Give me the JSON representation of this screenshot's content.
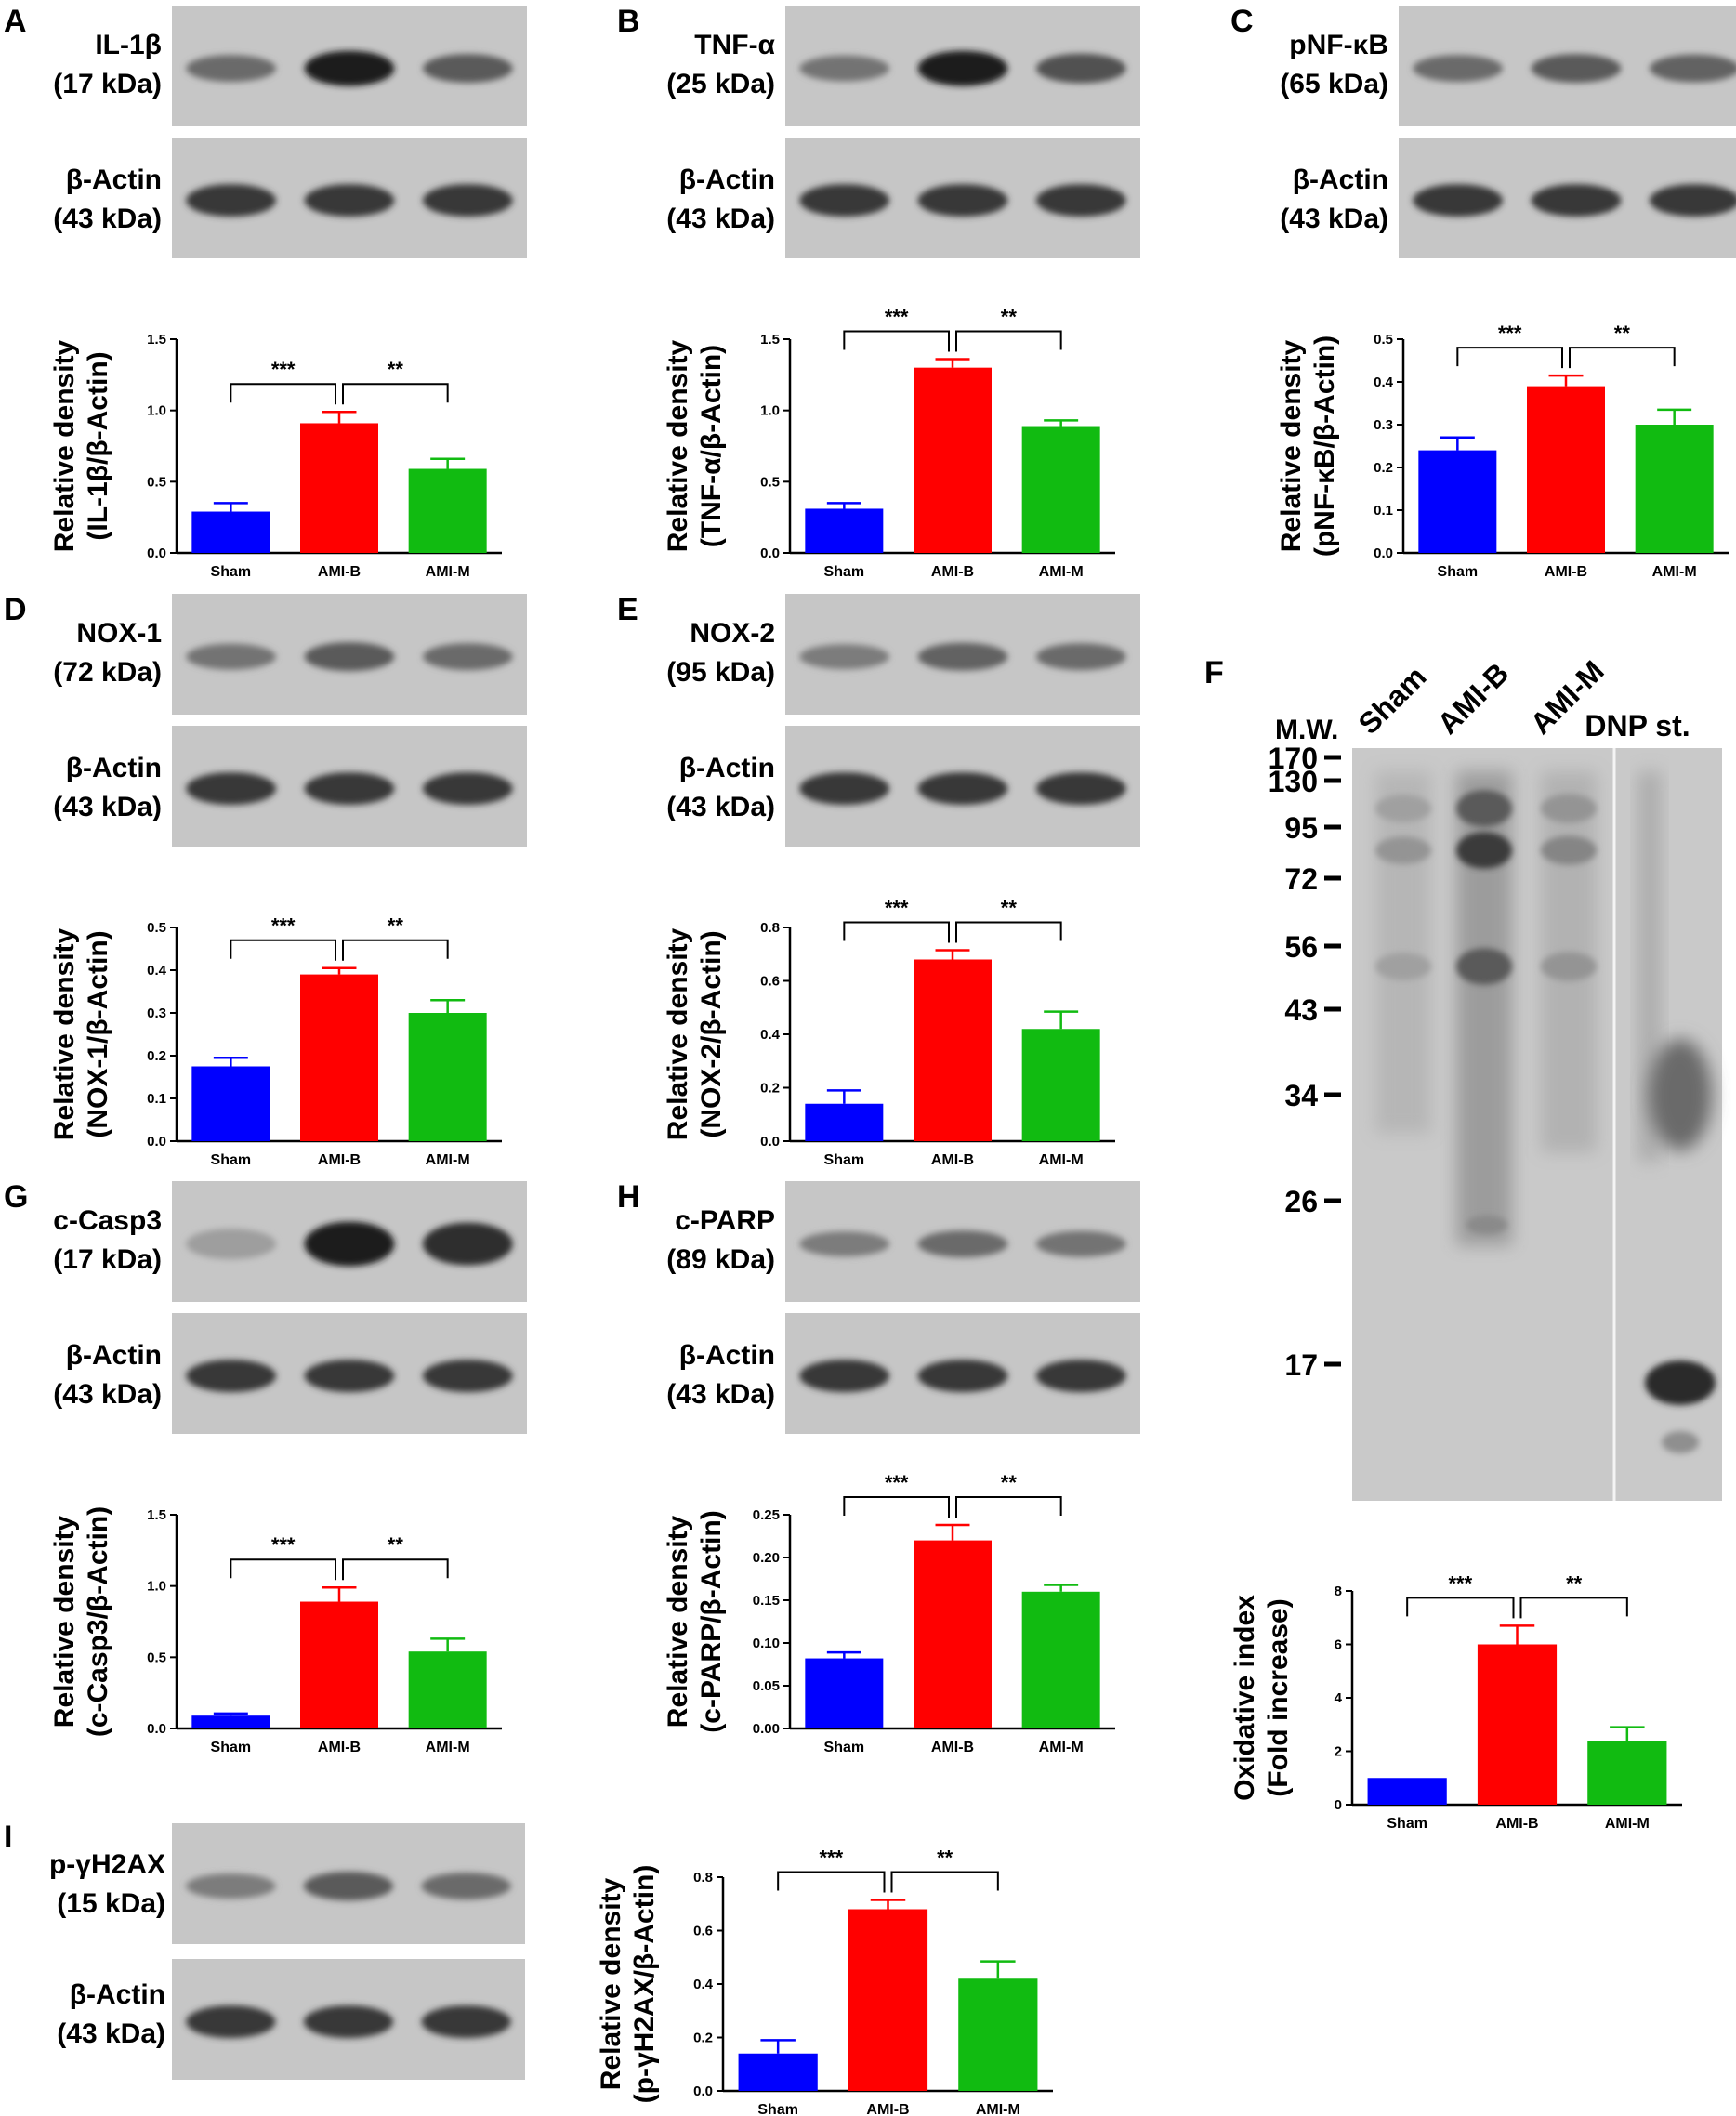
{
  "x_categories": [
    "Sham",
    "AMI-B",
    "AMI-M"
  ],
  "colors": {
    "Sham": "#0000ff",
    "AMI-B": "#ff0000",
    "AMI-M": "#11bb11"
  },
  "actin_label": [
    "β-Actin",
    "(43 kDa)"
  ],
  "panels": [
    {
      "letter": "A",
      "blot_label": [
        "IL-1β",
        "(17 kDa)"
      ],
      "intensity": [
        0.55,
        1.0,
        0.65
      ]
    },
    {
      "letter": "B",
      "blot_label": [
        "TNF-α",
        "(25 kDa)"
      ],
      "intensity": [
        0.5,
        1.0,
        0.7
      ]
    },
    {
      "letter": "C",
      "blot_label": [
        "pNF-κB",
        "(65 kDa)"
      ],
      "intensity": [
        0.55,
        0.65,
        0.6
      ]
    },
    {
      "letter": "D",
      "blot_label": [
        "NOX-1",
        "(72 kDa)"
      ],
      "intensity": [
        0.5,
        0.65,
        0.55
      ]
    },
    {
      "letter": "E",
      "blot_label": [
        "NOX-2",
        "(95 kDa)"
      ],
      "intensity": [
        0.45,
        0.6,
        0.55
      ]
    },
    {
      "letter": "G",
      "blot_label": [
        "c-Casp3",
        "(17 kDa)"
      ],
      "intensity": [
        0.25,
        1.0,
        0.9
      ]
    },
    {
      "letter": "H",
      "blot_label": [
        "c-PARP",
        "(89 kDa)"
      ],
      "intensity": [
        0.45,
        0.55,
        0.5
      ]
    },
    {
      "letter": "I",
      "blot_label": [
        "p-γH2AX",
        "(15 kDa)"
      ],
      "intensity": [
        0.45,
        0.65,
        0.55
      ]
    }
  ],
  "panel_F": {
    "letter": "F",
    "mw_header": "M.W.",
    "lane_labels": [
      "Sham",
      "AMI-B",
      "AMI-M",
      "DNP st."
    ],
    "markers": [
      "170",
      "130",
      "95",
      "72",
      "56",
      "43",
      "34",
      "26",
      "17"
    ]
  },
  "chart_data": [
    {
      "panel": "A",
      "type": "bar",
      "categories": [
        "Sham",
        "AMI-B",
        "AMI-M"
      ],
      "values": [
        0.29,
        0.91,
        0.59
      ],
      "errors": [
        0.06,
        0.08,
        0.07
      ],
      "ylim": [
        0,
        1.5
      ],
      "yticks": [
        "0.0",
        "0.5",
        "1.0",
        "1.5"
      ],
      "ylabel": [
        "Relative density",
        "(IL-1β/β-Actin)"
      ],
      "sig": [
        "***",
        "**"
      ]
    },
    {
      "panel": "B",
      "type": "bar",
      "categories": [
        "Sham",
        "AMI-B",
        "AMI-M"
      ],
      "values": [
        0.31,
        1.3,
        0.89
      ],
      "errors": [
        0.04,
        0.06,
        0.04
      ],
      "ylim": [
        0,
        1.5
      ],
      "yticks": [
        "0.0",
        "0.5",
        "1.0",
        "1.5"
      ],
      "ylabel": [
        "Relative density",
        "(TNF-α/β-Actin)"
      ],
      "sig": [
        "***",
        "**"
      ]
    },
    {
      "panel": "C",
      "type": "bar",
      "categories": [
        "Sham",
        "AMI-B",
        "AMI-M"
      ],
      "values": [
        0.24,
        0.39,
        0.3
      ],
      "errors": [
        0.03,
        0.025,
        0.035
      ],
      "ylim": [
        0,
        0.5
      ],
      "yticks": [
        "0.0",
        "0.1",
        "0.2",
        "0.3",
        "0.4",
        "0.5"
      ],
      "ylabel": [
        "Relative density",
        "(pNF-κB/β-Actin)"
      ],
      "sig": [
        "***",
        "**"
      ]
    },
    {
      "panel": "D",
      "type": "bar",
      "categories": [
        "Sham",
        "AMI-B",
        "AMI-M"
      ],
      "values": [
        0.175,
        0.39,
        0.3
      ],
      "errors": [
        0.02,
        0.015,
        0.03
      ],
      "ylim": [
        0,
        0.5
      ],
      "yticks": [
        "0.0",
        "0.1",
        "0.2",
        "0.3",
        "0.4",
        "0.5"
      ],
      "ylabel": [
        "Relative density",
        "(NOX-1/β-Actin)"
      ],
      "sig": [
        "***",
        "**"
      ]
    },
    {
      "panel": "E",
      "type": "bar",
      "categories": [
        "Sham",
        "AMI-B",
        "AMI-M"
      ],
      "values": [
        0.14,
        0.68,
        0.42
      ],
      "errors": [
        0.05,
        0.035,
        0.065
      ],
      "ylim": [
        0,
        0.8
      ],
      "yticks": [
        "0.0",
        "0.2",
        "0.4",
        "0.6",
        "0.8"
      ],
      "ylabel": [
        "Relative density",
        "(NOX-2/β-Actin)"
      ],
      "sig": [
        "***",
        "**"
      ]
    },
    {
      "panel": "G",
      "type": "bar",
      "categories": [
        "Sham",
        "AMI-B",
        "AMI-M"
      ],
      "values": [
        0.09,
        0.89,
        0.54
      ],
      "errors": [
        0.015,
        0.1,
        0.09
      ],
      "ylim": [
        0,
        1.5
      ],
      "yticks": [
        "0.0",
        "0.5",
        "1.0",
        "1.5"
      ],
      "ylabel": [
        "Relative density",
        "(c-Casp3/β-Actin)"
      ],
      "sig": [
        "***",
        "**"
      ]
    },
    {
      "panel": "H",
      "type": "bar",
      "categories": [
        "Sham",
        "AMI-B",
        "AMI-M"
      ],
      "values": [
        0.082,
        0.22,
        0.16
      ],
      "errors": [
        0.007,
        0.018,
        0.008
      ],
      "ylim": [
        0,
        0.25
      ],
      "yticks": [
        "0.00",
        "0.05",
        "0.10",
        "0.15",
        "0.20",
        "0.25"
      ],
      "ylabel": [
        "Relative density",
        "(c-PARP/β-Actin)"
      ],
      "sig": [
        "***",
        "**"
      ]
    },
    {
      "panel": "F",
      "type": "bar",
      "categories": [
        "Sham",
        "AMI-B",
        "AMI-M"
      ],
      "values": [
        1.0,
        6.0,
        2.4
      ],
      "errors": [
        0,
        0.7,
        0.5
      ],
      "ylim": [
        0,
        8
      ],
      "yticks": [
        "0",
        "2",
        "4",
        "6",
        "8"
      ],
      "ylabel": [
        "Oxidative index",
        "(Fold increase)"
      ],
      "sig": [
        "***",
        "**"
      ]
    },
    {
      "panel": "I",
      "type": "bar",
      "categories": [
        "Sham",
        "AMI-B",
        "AMI-M"
      ],
      "values": [
        0.14,
        0.68,
        0.42
      ],
      "errors": [
        0.05,
        0.035,
        0.065
      ],
      "ylim": [
        0,
        0.8
      ],
      "yticks": [
        "0.0",
        "0.2",
        "0.4",
        "0.6",
        "0.8"
      ],
      "ylabel": [
        "Relative density",
        "(p-γH2AX/β-Actin)"
      ],
      "sig": [
        "***",
        "**"
      ]
    }
  ]
}
